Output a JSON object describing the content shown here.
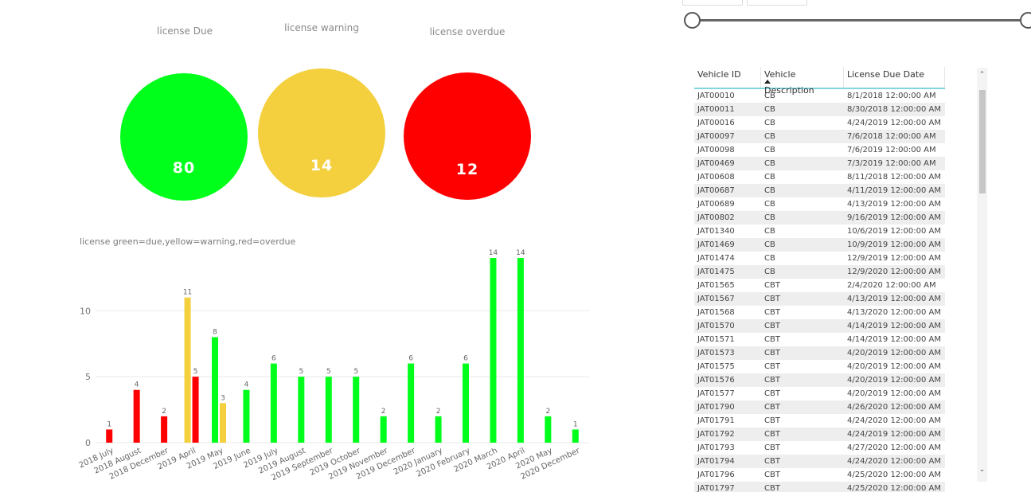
{
  "cards": [
    {
      "label": "license Due",
      "value": "80",
      "color": "#00ff1a"
    },
    {
      "label": "license warning",
      "value": "14",
      "color": "#f4d03f"
    },
    {
      "label": "license overdue",
      "value": "12",
      "color": "#ff0000"
    }
  ],
  "chart_title": "license green=due,yellow=warning,red=overdue",
  "chart_data": {
    "type": "bar",
    "categories": [
      "2018 July",
      "2018 August",
      "2018 December",
      "2019 April",
      "2019 May",
      "2019 June",
      "2019 July",
      "2019 August",
      "2019 September",
      "2019 October",
      "2019 November",
      "2019 December",
      "2020 January",
      "2020 February",
      "2020 March",
      "2020 April",
      "2020 May",
      "2020 December"
    ],
    "series": [
      {
        "color": "#00ff1a",
        "values": [
          null,
          null,
          null,
          null,
          8,
          4,
          6,
          5,
          5,
          5,
          2,
          6,
          2,
          6,
          14,
          14,
          2,
          1
        ]
      },
      {
        "color": "#f4d03f",
        "values": [
          null,
          null,
          null,
          11,
          3,
          null,
          null,
          null,
          null,
          null,
          null,
          null,
          null,
          null,
          null,
          null,
          null,
          null
        ]
      },
      {
        "color": "#ff0000",
        "values": [
          1,
          4,
          2,
          5,
          null,
          null,
          null,
          null,
          null,
          null,
          null,
          null,
          null,
          null,
          null,
          null,
          null,
          null
        ]
      }
    ],
    "yticks": [
      0,
      5,
      10
    ],
    "ylim": [
      0,
      14
    ],
    "xlabel": "",
    "ylabel": "",
    "grid": true
  },
  "table": {
    "headers": [
      "Vehicle ID",
      "Vehicle Description",
      "License Due Date"
    ],
    "rows": [
      [
        "JAT00010",
        "CB",
        "8/1/2018 12:00:00 AM"
      ],
      [
        "JAT00011",
        "CB",
        "8/30/2018 12:00:00 AM"
      ],
      [
        "JAT00016",
        "CB",
        "4/24/2019 12:00:00 AM"
      ],
      [
        "JAT00097",
        "CB",
        "7/6/2018 12:00:00 AM"
      ],
      [
        "JAT00098",
        "CB",
        "7/6/2019 12:00:00 AM"
      ],
      [
        "JAT00469",
        "CB",
        "7/3/2019 12:00:00 AM"
      ],
      [
        "JAT00608",
        "CB",
        "8/11/2018 12:00:00 AM"
      ],
      [
        "JAT00687",
        "CB",
        "4/11/2019 12:00:00 AM"
      ],
      [
        "JAT00689",
        "CB",
        "4/13/2019 12:00:00 AM"
      ],
      [
        "JAT00802",
        "CB",
        "9/16/2019 12:00:00 AM"
      ],
      [
        "JAT01340",
        "CB",
        "10/6/2019 12:00:00 AM"
      ],
      [
        "JAT01469",
        "CB",
        "10/9/2019 12:00:00 AM"
      ],
      [
        "JAT01474",
        "CB",
        "12/9/2019 12:00:00 AM"
      ],
      [
        "JAT01475",
        "CB",
        "12/9/2020 12:00:00 AM"
      ],
      [
        "JAT01565",
        "CBT",
        "2/4/2020 12:00:00 AM"
      ],
      [
        "JAT01567",
        "CBT",
        "4/13/2019 12:00:00 AM"
      ],
      [
        "JAT01568",
        "CBT",
        "4/13/2020 12:00:00 AM"
      ],
      [
        "JAT01570",
        "CBT",
        "4/14/2019 12:00:00 AM"
      ],
      [
        "JAT01571",
        "CBT",
        "4/14/2019 12:00:00 AM"
      ],
      [
        "JAT01573",
        "CBT",
        "4/20/2019 12:00:00 AM"
      ],
      [
        "JAT01575",
        "CBT",
        "4/20/2019 12:00:00 AM"
      ],
      [
        "JAT01576",
        "CBT",
        "4/20/2019 12:00:00 AM"
      ],
      [
        "JAT01577",
        "CBT",
        "4/20/2019 12:00:00 AM"
      ],
      [
        "JAT01790",
        "CBT",
        "4/26/2020 12:00:00 AM"
      ],
      [
        "JAT01791",
        "CBT",
        "4/24/2020 12:00:00 AM"
      ],
      [
        "JAT01792",
        "CBT",
        "4/24/2019 12:00:00 AM"
      ],
      [
        "JAT01793",
        "CBT",
        "4/27/2020 12:00:00 AM"
      ],
      [
        "JAT01794",
        "CBT",
        "4/24/2020 12:00:00 AM"
      ],
      [
        "JAT01796",
        "CBT",
        "4/25/2020 12:00:00 AM"
      ],
      [
        "JAT01797",
        "CBT",
        "4/25/2020 12:00:00 AM"
      ]
    ]
  },
  "icons": {
    "sort": "sort-ascending-icon",
    "scroll_up": "chevron-up-icon",
    "scroll_down": "chevron-down-icon"
  }
}
